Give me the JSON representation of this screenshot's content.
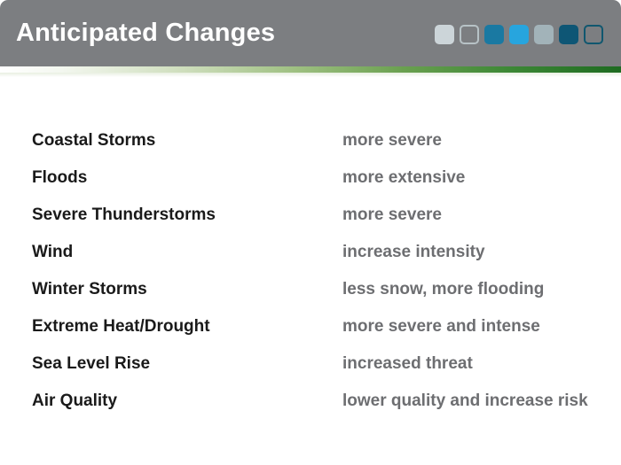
{
  "slide": {
    "title": "Anticipated Changes"
  },
  "header": {
    "background_color": "#7c7e81",
    "palette": [
      {
        "name": "light-gray-swatch",
        "style": "filled",
        "color": "#ccd5d9"
      },
      {
        "name": "outline-gray-swatch",
        "style": "outline",
        "color": "#b7c2c6"
      },
      {
        "name": "blue-swatch",
        "style": "filled",
        "color": "#1a79a2"
      },
      {
        "name": "bright-blue-swatch",
        "style": "filled",
        "color": "#27a5de"
      },
      {
        "name": "gray-blue-swatch",
        "style": "filled",
        "color": "#a2b3b9"
      },
      {
        "name": "dark-teal-swatch",
        "style": "filled",
        "color": "#0e5675"
      },
      {
        "name": "outline-teal-swatch",
        "style": "outline",
        "color": "#10576f"
      }
    ]
  },
  "divider": {
    "gradient_colors": [
      "#ffffff",
      "#9dbf80",
      "#3d8836",
      "#1e6b21"
    ]
  },
  "content": {
    "text_colors": {
      "hazard": "#1a1a1a",
      "change": "#6d6e71"
    },
    "rows": [
      {
        "hazard": "Coastal Storms",
        "change": "more severe"
      },
      {
        "hazard": "Floods",
        "change": "more extensive"
      },
      {
        "hazard": "Severe Thunderstorms",
        "change": "more severe"
      },
      {
        "hazard": "Wind",
        "change": "increase intensity"
      },
      {
        "hazard": "Winter Storms",
        "change": "less snow, more flooding"
      },
      {
        "hazard": "Extreme Heat/Drought",
        "change": "more severe and intense"
      },
      {
        "hazard": "Sea Level Rise",
        "change": "increased threat"
      },
      {
        "hazard": "Air Quality",
        "change": "lower quality and increase risk"
      }
    ]
  }
}
